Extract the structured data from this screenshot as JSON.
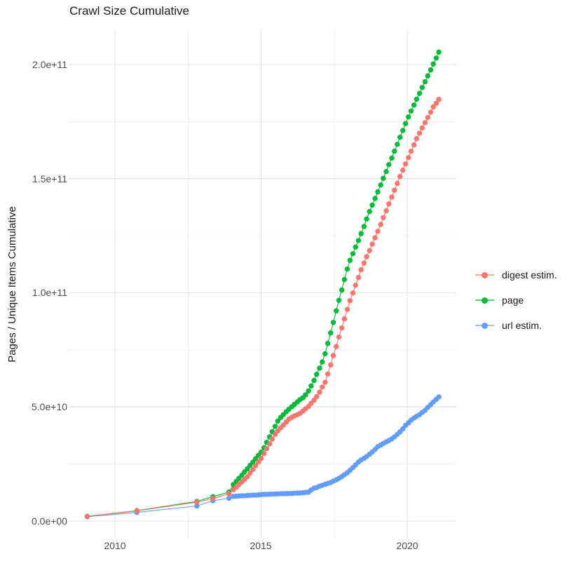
{
  "title": "Crawl Size Cumulative",
  "chart_data": {
    "type": "line-scatter",
    "title": "Crawl Size Cumulative",
    "legend_position": "right",
    "grid": "major+minor, light gray on white",
    "units": "point values are [year, cumulative_count_in_billions(1e9)]",
    "x_axis": {
      "label": "",
      "ticks": [
        2010,
        2015,
        2020
      ],
      "tick_labels": [
        "2010",
        "2015",
        "2020"
      ],
      "minor_ticks": [
        2012.5,
        2017.5
      ],
      "range": [
        2008.44,
        2021.68
      ]
    },
    "y_axis": {
      "label": "Pages / Unique Items Cumulative",
      "ticks_e9": [
        0,
        50,
        100,
        150,
        200
      ],
      "tick_labels": [
        "0.0e+00",
        "5.0e+10",
        "1.0e+11",
        "1.5e+11",
        "2.0e+11"
      ],
      "minor_ticks_e9": [
        25,
        75,
        125,
        175
      ],
      "range_e9": [
        -7.7,
        215
      ]
    },
    "series": [
      {
        "name": "digest estim.",
        "color": "#F8766D",
        "points": [
          [
            2009.05,
            2.0
          ],
          [
            2010.75,
            4.5
          ],
          [
            2012.8,
            8.3
          ],
          [
            2013.35,
            9.9
          ],
          [
            2013.9,
            12.0
          ],
          [
            2014.05,
            13.8
          ],
          [
            2014.15,
            14.9
          ],
          [
            2014.24,
            16.0
          ],
          [
            2014.34,
            17.1
          ],
          [
            2014.43,
            18.2
          ],
          [
            2014.53,
            19.4
          ],
          [
            2014.62,
            21.0
          ],
          [
            2014.72,
            22.6
          ],
          [
            2014.81,
            24.3
          ],
          [
            2014.91,
            25.9
          ],
          [
            2015.0,
            27.5
          ],
          [
            2015.1,
            29.6
          ],
          [
            2015.19,
            31.7
          ],
          [
            2015.29,
            33.8
          ],
          [
            2015.38,
            35.9
          ],
          [
            2015.48,
            38.0
          ],
          [
            2015.57,
            39.5
          ],
          [
            2015.67,
            40.9
          ],
          [
            2015.76,
            42.1
          ],
          [
            2015.86,
            43.4
          ],
          [
            2015.95,
            44.7
          ],
          [
            2016.05,
            45.5
          ],
          [
            2016.14,
            46.1
          ],
          [
            2016.24,
            46.6
          ],
          [
            2016.33,
            47.2
          ],
          [
            2016.43,
            48.2
          ],
          [
            2016.52,
            49.2
          ],
          [
            2016.62,
            50.2
          ],
          [
            2016.71,
            51.6
          ],
          [
            2016.81,
            53.0
          ],
          [
            2016.9,
            54.5
          ],
          [
            2017.0,
            56.5
          ],
          [
            2017.09,
            58.7
          ],
          [
            2017.19,
            60.8
          ],
          [
            2017.28,
            64.4
          ],
          [
            2017.38,
            68.4
          ],
          [
            2017.47,
            72.5
          ],
          [
            2017.57,
            76.5
          ],
          [
            2017.66,
            80.6
          ],
          [
            2017.76,
            84.6
          ],
          [
            2017.85,
            88.6
          ],
          [
            2017.95,
            92.7
          ],
          [
            2018.04,
            96.5
          ],
          [
            2018.14,
            99.9
          ],
          [
            2018.23,
            103.3
          ],
          [
            2018.33,
            106.7
          ],
          [
            2018.42,
            110.1
          ],
          [
            2018.52,
            113.0
          ],
          [
            2018.61,
            115.8
          ],
          [
            2018.71,
            118.5
          ],
          [
            2018.8,
            121.3
          ],
          [
            2018.9,
            124.1
          ],
          [
            2018.99,
            126.9
          ],
          [
            2019.09,
            129.9
          ],
          [
            2019.18,
            132.9
          ],
          [
            2019.28,
            135.9
          ],
          [
            2019.37,
            138.9
          ],
          [
            2019.47,
            141.9
          ],
          [
            2019.56,
            144.9
          ],
          [
            2019.66,
            147.9
          ],
          [
            2019.75,
            150.9
          ],
          [
            2019.85,
            153.7
          ],
          [
            2019.94,
            156.4
          ],
          [
            2020.04,
            159.2
          ],
          [
            2020.13,
            162.0
          ],
          [
            2020.23,
            164.8
          ],
          [
            2020.32,
            167.5
          ],
          [
            2020.42,
            169.9
          ],
          [
            2020.51,
            172.2
          ],
          [
            2020.61,
            174.5
          ],
          [
            2020.7,
            176.8
          ],
          [
            2020.8,
            179.1
          ],
          [
            2020.89,
            181.4
          ],
          [
            2020.99,
            183.0
          ],
          [
            2021.08,
            184.7
          ]
        ]
      },
      {
        "name": "page",
        "color": "#00BA38",
        "points": [
          [
            2009.05,
            2.1
          ],
          [
            2010.75,
            4.6
          ],
          [
            2012.8,
            8.6
          ],
          [
            2013.35,
            10.7
          ],
          [
            2013.9,
            12.7
          ],
          [
            2014.05,
            16.0
          ],
          [
            2014.15,
            17.4
          ],
          [
            2014.24,
            18.7
          ],
          [
            2014.34,
            20.1
          ],
          [
            2014.43,
            21.5
          ],
          [
            2014.53,
            22.9
          ],
          [
            2014.62,
            24.4
          ],
          [
            2014.72,
            25.8
          ],
          [
            2014.81,
            27.3
          ],
          [
            2014.91,
            28.8
          ],
          [
            2015.0,
            30.2
          ],
          [
            2015.1,
            32.1
          ],
          [
            2015.19,
            34.5
          ],
          [
            2015.29,
            36.9
          ],
          [
            2015.38,
            39.2
          ],
          [
            2015.48,
            41.5
          ],
          [
            2015.57,
            43.8
          ],
          [
            2015.67,
            45.4
          ],
          [
            2015.76,
            46.6
          ],
          [
            2015.86,
            47.9
          ],
          [
            2015.95,
            49.0
          ],
          [
            2016.05,
            50.1
          ],
          [
            2016.14,
            51.1
          ],
          [
            2016.24,
            52.2
          ],
          [
            2016.33,
            53.2
          ],
          [
            2016.43,
            54.0
          ],
          [
            2016.52,
            55.3
          ],
          [
            2016.62,
            57.0
          ],
          [
            2016.71,
            59.2
          ],
          [
            2016.81,
            61.6
          ],
          [
            2016.9,
            64.3
          ],
          [
            2017.0,
            67.0
          ],
          [
            2017.09,
            69.7
          ],
          [
            2017.19,
            73.3
          ],
          [
            2017.28,
            77.8
          ],
          [
            2017.38,
            82.4
          ],
          [
            2017.47,
            87.0
          ],
          [
            2017.57,
            92.1
          ],
          [
            2017.66,
            96.7
          ],
          [
            2017.76,
            101.2
          ],
          [
            2017.85,
            105.8
          ],
          [
            2017.95,
            110.4
          ],
          [
            2018.04,
            114.2
          ],
          [
            2018.14,
            117.1
          ],
          [
            2018.23,
            120.0
          ],
          [
            2018.33,
            122.9
          ],
          [
            2018.42,
            125.9
          ],
          [
            2018.52,
            129.0
          ],
          [
            2018.61,
            132.3
          ],
          [
            2018.71,
            135.6
          ],
          [
            2018.8,
            138.4
          ],
          [
            2018.9,
            141.3
          ],
          [
            2018.99,
            144.2
          ],
          [
            2019.09,
            147.2
          ],
          [
            2019.18,
            150.1
          ],
          [
            2019.28,
            153.1
          ],
          [
            2019.37,
            156.1
          ],
          [
            2019.47,
            159.0
          ],
          [
            2019.56,
            162.0
          ],
          [
            2019.66,
            165.0
          ],
          [
            2019.75,
            168.1
          ],
          [
            2019.85,
            171.1
          ],
          [
            2019.94,
            174.1
          ],
          [
            2020.04,
            177.0
          ],
          [
            2020.13,
            179.6
          ],
          [
            2020.23,
            182.2
          ],
          [
            2020.32,
            184.8
          ],
          [
            2020.42,
            187.3
          ],
          [
            2020.51,
            189.9
          ],
          [
            2020.61,
            192.4
          ],
          [
            2020.7,
            195.0
          ],
          [
            2020.8,
            197.6
          ],
          [
            2020.89,
            200.2
          ],
          [
            2020.99,
            202.8
          ],
          [
            2021.08,
            205.4
          ]
        ]
      },
      {
        "name": "url estim.",
        "color": "#619CFF",
        "points": [
          [
            2009.05,
            1.9
          ],
          [
            2010.75,
            3.8
          ],
          [
            2012.8,
            6.6
          ],
          [
            2013.35,
            8.9
          ],
          [
            2013.9,
            10.0
          ],
          [
            2014.05,
            10.8
          ],
          [
            2014.15,
            10.9
          ],
          [
            2014.24,
            11.0
          ],
          [
            2014.34,
            11.1
          ],
          [
            2014.43,
            11.1
          ],
          [
            2014.53,
            11.2
          ],
          [
            2014.62,
            11.3
          ],
          [
            2014.72,
            11.4
          ],
          [
            2014.81,
            11.4
          ],
          [
            2014.91,
            11.5
          ],
          [
            2015.0,
            11.6
          ],
          [
            2015.1,
            11.7
          ],
          [
            2015.19,
            11.7
          ],
          [
            2015.29,
            11.8
          ],
          [
            2015.38,
            11.8
          ],
          [
            2015.48,
            11.9
          ],
          [
            2015.57,
            11.9
          ],
          [
            2015.67,
            12.0
          ],
          [
            2015.76,
            12.0
          ],
          [
            2015.86,
            12.0
          ],
          [
            2015.95,
            12.1
          ],
          [
            2016.05,
            12.1
          ],
          [
            2016.14,
            12.2
          ],
          [
            2016.24,
            12.3
          ],
          [
            2016.33,
            12.3
          ],
          [
            2016.43,
            12.4
          ],
          [
            2016.52,
            12.6
          ],
          [
            2016.62,
            12.7
          ],
          [
            2016.71,
            13.6
          ],
          [
            2016.81,
            14.4
          ],
          [
            2016.9,
            14.7
          ],
          [
            2017.0,
            15.3
          ],
          [
            2017.09,
            15.7
          ],
          [
            2017.19,
            16.1
          ],
          [
            2017.28,
            16.5
          ],
          [
            2017.38,
            16.9
          ],
          [
            2017.47,
            17.5
          ],
          [
            2017.57,
            18.1
          ],
          [
            2017.66,
            18.7
          ],
          [
            2017.76,
            19.5
          ],
          [
            2017.85,
            20.3
          ],
          [
            2017.95,
            21.2
          ],
          [
            2018.04,
            22.2
          ],
          [
            2018.14,
            23.4
          ],
          [
            2018.23,
            24.6
          ],
          [
            2018.33,
            25.9
          ],
          [
            2018.42,
            26.8
          ],
          [
            2018.52,
            27.5
          ],
          [
            2018.61,
            28.3
          ],
          [
            2018.71,
            29.3
          ],
          [
            2018.8,
            30.3
          ],
          [
            2018.9,
            31.4
          ],
          [
            2018.99,
            32.6
          ],
          [
            2019.09,
            33.3
          ],
          [
            2019.18,
            34.0
          ],
          [
            2019.28,
            34.7
          ],
          [
            2019.37,
            35.3
          ],
          [
            2019.47,
            36.0
          ],
          [
            2019.56,
            36.9
          ],
          [
            2019.66,
            38.0
          ],
          [
            2019.75,
            39.1
          ],
          [
            2019.85,
            40.4
          ],
          [
            2019.94,
            41.9
          ],
          [
            2020.04,
            43.0
          ],
          [
            2020.13,
            44.2
          ],
          [
            2020.23,
            45.2
          ],
          [
            2020.32,
            45.9
          ],
          [
            2020.42,
            46.6
          ],
          [
            2020.51,
            47.6
          ],
          [
            2020.61,
            48.5
          ],
          [
            2020.7,
            49.8
          ],
          [
            2020.8,
            51.0
          ],
          [
            2020.89,
            52.2
          ],
          [
            2020.99,
            53.3
          ],
          [
            2021.08,
            54.4
          ]
        ]
      }
    ]
  }
}
